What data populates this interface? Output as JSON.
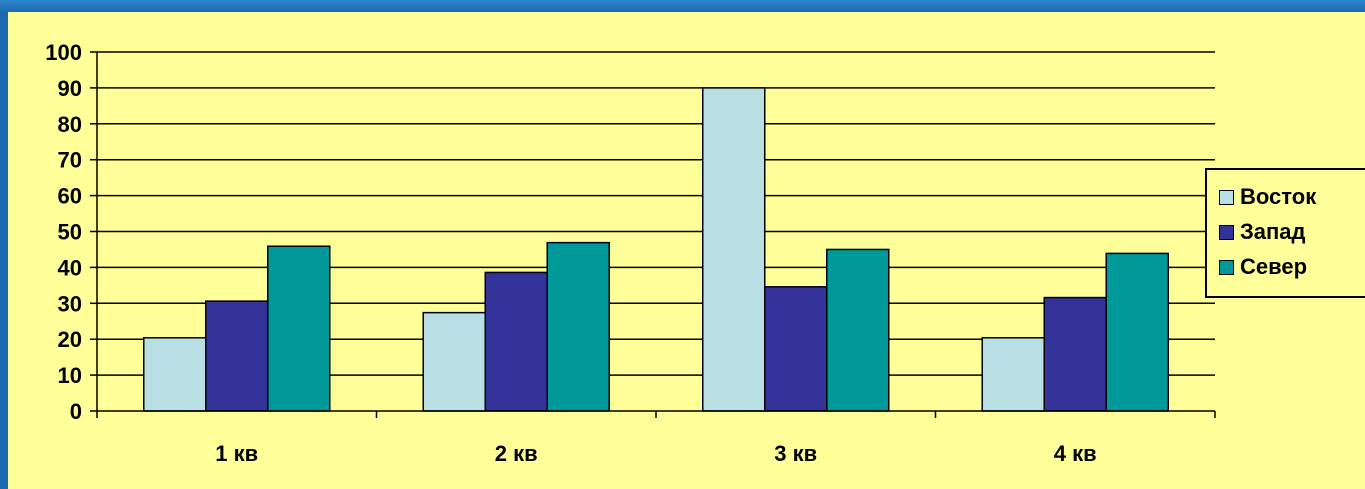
{
  "chart_data": {
    "type": "bar",
    "categories": [
      "1 кв",
      "2 кв",
      "3 кв",
      "4 кв"
    ],
    "series": [
      {
        "name": "Восток",
        "values": [
          20.4,
          27.4,
          90,
          20.4
        ],
        "color": "#b8dfe3"
      },
      {
        "name": "Запад",
        "values": [
          30.6,
          38.6,
          34.6,
          31.6
        ],
        "color": "#333399"
      },
      {
        "name": "Север",
        "values": [
          45.9,
          46.9,
          45,
          43.9
        ],
        "color": "#009999"
      }
    ],
    "yticks": [
      0,
      10,
      20,
      30,
      40,
      50,
      60,
      70,
      80,
      90,
      100
    ],
    "ylim": [
      0,
      100
    ],
    "grid": true,
    "legend_position": "right",
    "plot_background": "#ffff99",
    "frame_color": "#1c6aae"
  }
}
